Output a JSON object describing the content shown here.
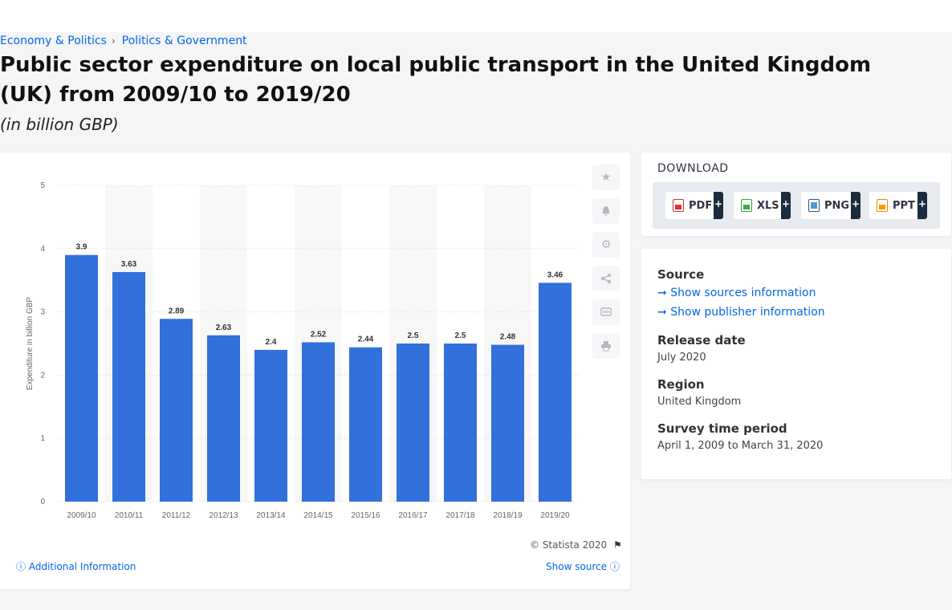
{
  "breadcrumb": {
    "first": "Economy & Politics",
    "separator": "›",
    "second": "Politics & Government"
  },
  "page": {
    "title": "Public sector expenditure on local public transport in the United Kingdom (UK) from 2009/10 to 2019/20",
    "subtitle": "(in billion GBP)"
  },
  "chart_data": {
    "type": "bar",
    "categories": [
      "2009/10",
      "2010/11",
      "2011/12",
      "2012/13",
      "2013/14",
      "2014/15",
      "2015/16",
      "2016/17",
      "2017/18",
      "2018/19",
      "2019/20"
    ],
    "values": [
      3.9,
      3.63,
      2.89,
      2.63,
      2.4,
      2.52,
      2.44,
      2.5,
      2.5,
      2.48,
      3.46
    ],
    "value_labels": [
      "3.9",
      "3.63",
      "2.89",
      "2.63",
      "2.4",
      "2.52",
      "2.44",
      "2.5",
      "2.5",
      "2.48",
      "3.46"
    ],
    "title": "",
    "xlabel": "",
    "ylabel": "Expenditure in billion GBP",
    "ylim": [
      0,
      5
    ],
    "yticks": [
      "0",
      "1",
      "2",
      "3",
      "4",
      "5"
    ],
    "grid": true,
    "bar_color": "#3270db"
  },
  "chart_footer": {
    "copyright": "© Statista 2020",
    "additional_info": "Additional Information",
    "show_source": "Show source"
  },
  "download": {
    "heading": "DOWNLOAD",
    "buttons": [
      {
        "label": "PDF",
        "plus": "+"
      },
      {
        "label": "XLS",
        "plus": "+"
      },
      {
        "label": "PNG",
        "plus": "+"
      },
      {
        "label": "PPT",
        "plus": "+"
      }
    ]
  },
  "info": {
    "source_label": "Source",
    "show_sources": "Show sources information",
    "show_publisher": "Show publisher information",
    "release_label": "Release date",
    "release_value": "July 2020",
    "region_label": "Region",
    "region_value": "United Kingdom",
    "survey_label": "Survey time period",
    "survey_value": "April 1, 2009 to March 31, 2020"
  }
}
